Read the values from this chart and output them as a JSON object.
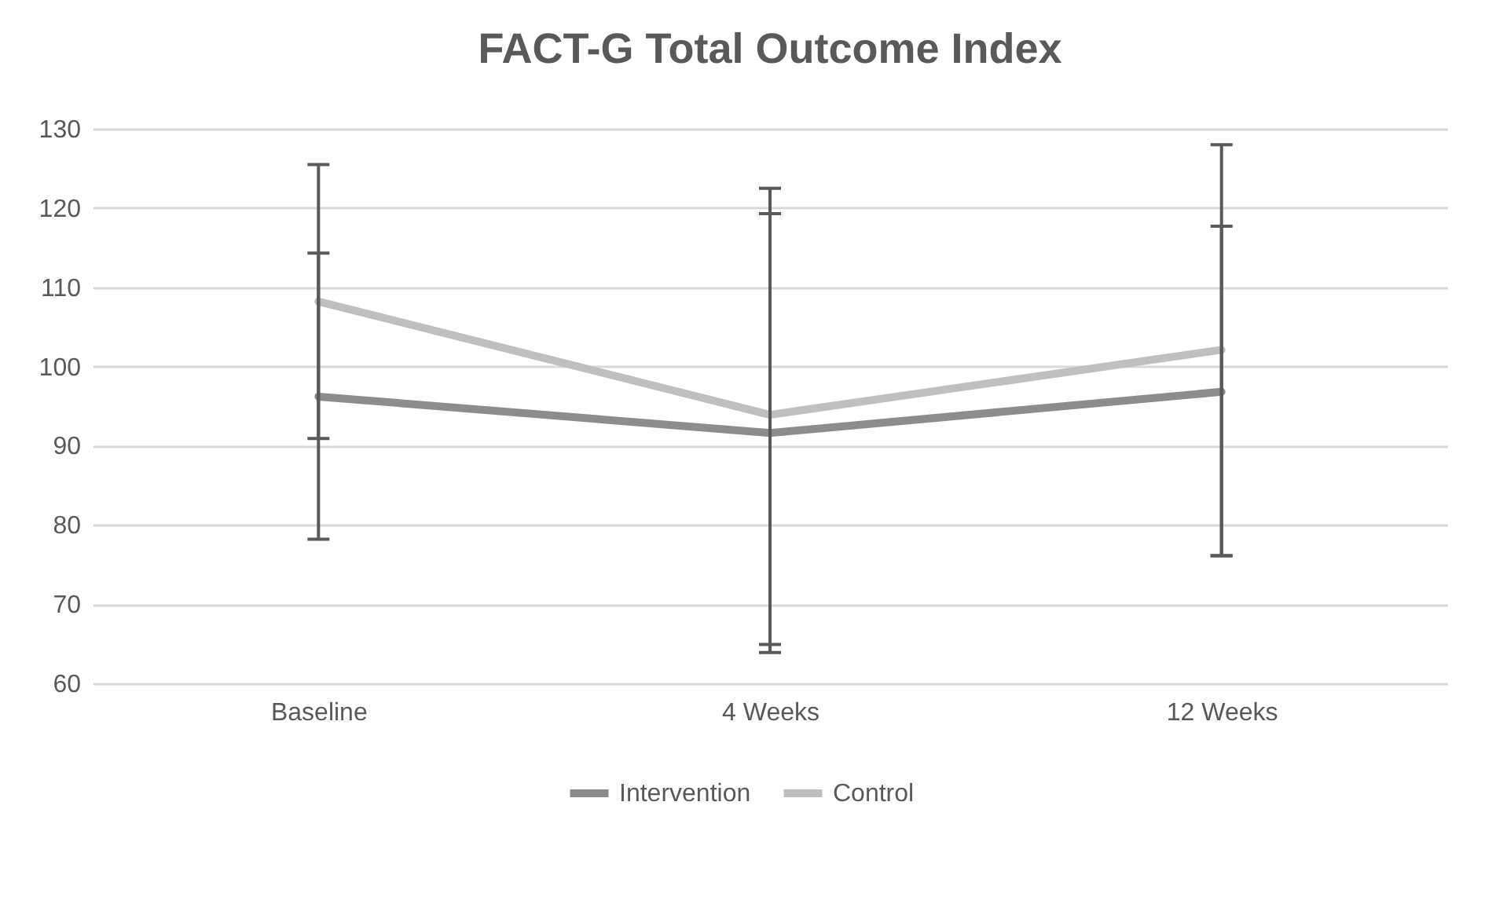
{
  "chart_data": {
    "type": "line",
    "title": "FACT-G Total Outcome Index",
    "categories": [
      "Baseline",
      "4 Weeks",
      "12 Weeks"
    ],
    "series": [
      {
        "name": "Intervention",
        "color": "#8c8c8c",
        "values": [
          96.2,
          91.6,
          96.8
        ],
        "errors": [
          [
            78.2,
            114.3
          ],
          [
            63.9,
            119.3
          ],
          [
            76.1,
            117.7
          ]
        ]
      },
      {
        "name": "Control",
        "color": "#bfbfbf",
        "values": [
          108.2,
          93.9,
          102.1
        ],
        "errors": [
          [
            90.9,
            125.5
          ],
          [
            64.9,
            122.5
          ],
          [
            76.1,
            128.0
          ]
        ]
      }
    ],
    "ylim": [
      60,
      130
    ],
    "yticks": [
      60,
      70,
      80,
      90,
      100,
      110,
      120,
      130
    ],
    "grid": "y",
    "legend": "bottom",
    "marker": "none",
    "line_style": "solid"
  }
}
